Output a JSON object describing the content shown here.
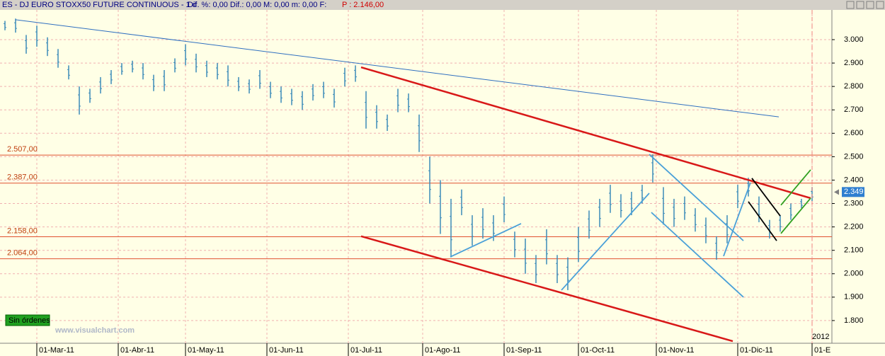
{
  "header": {
    "title": "ES - DJ EURO STOXX50 FUTURE CONTINUOUS - 1 d",
    "stats": "Dif. %: 0,00  Dif.: 0,00  M: 0,00  m: 0,00  F:",
    "price": "P : 2.146,00"
  },
  "chart_data": {
    "type": "hilo",
    "color": "#3a8ab8",
    "x": [
      -9,
      -6,
      -3,
      0,
      3,
      6,
      9,
      12,
      15,
      18,
      21,
      24,
      27,
      30,
      33,
      36,
      39,
      42,
      45,
      48,
      51,
      54,
      57,
      60,
      63,
      66,
      69,
      72,
      75,
      78,
      81,
      84,
      87,
      90,
      93,
      96,
      99,
      102,
      105,
      108,
      111,
      114,
      117,
      120,
      123,
      126,
      129,
      132,
      135,
      138,
      141,
      144,
      147,
      150,
      153,
      156,
      159,
      162,
      165,
      168,
      171,
      174,
      177,
      180,
      183,
      186,
      189,
      192,
      195,
      198,
      201,
      204,
      207,
      210,
      213,
      216,
      219
    ],
    "high": [
      3080,
      3090,
      3020,
      3060,
      3010,
      2960,
      2890,
      2800,
      2790,
      2840,
      2870,
      2900,
      2910,
      2900,
      2850,
      2870,
      2920,
      2980,
      2940,
      2910,
      2900,
      2890,
      2840,
      2830,
      2870,
      2820,
      2800,
      2790,
      2780,
      2810,
      2820,
      2790,
      2880,
      2890,
      2780,
      2720,
      2680,
      2790,
      2770,
      2680,
      2500,
      2400,
      2320,
      2360,
      2250,
      2280,
      2250,
      2330,
      2180,
      2150,
      2080,
      2190,
      2080,
      2070,
      2200,
      2270,
      2320,
      2380,
      2340,
      2350,
      2380,
      2510,
      2370,
      2320,
      2330,
      2280,
      2240,
      2160,
      2250,
      2380,
      2410,
      2330,
      2230,
      2250,
      2300,
      2320,
      2370
    ],
    "low": [
      3040,
      3030,
      2940,
      2970,
      2930,
      2880,
      2830,
      2680,
      2730,
      2770,
      2810,
      2850,
      2860,
      2830,
      2780,
      2780,
      2860,
      2890,
      2860,
      2840,
      2830,
      2800,
      2780,
      2770,
      2790,
      2750,
      2730,
      2720,
      2700,
      2740,
      2750,
      2710,
      2800,
      2820,
      2620,
      2620,
      2610,
      2690,
      2690,
      2520,
      2300,
      2170,
      2070,
      2250,
      2120,
      2150,
      2140,
      2220,
      2070,
      2000,
      1960,
      2040,
      1960,
      1930,
      2050,
      2150,
      2200,
      2260,
      2240,
      2250,
      2300,
      2390,
      2210,
      2200,
      2230,
      2180,
      2130,
      2060,
      2130,
      2280,
      2330,
      2220,
      2150,
      2180,
      2230,
      2280,
      2310
    ],
    "xlim": [
      -10.4,
      224.6
    ],
    "xticks": [
      {
        "value": 0,
        "label": "01-Mar-11"
      },
      {
        "value": 23,
        "label": "01-Abr-11"
      },
      {
        "value": 42,
        "label": "01-May-11"
      },
      {
        "value": 65,
        "label": "01-Jun-11"
      },
      {
        "value": 88,
        "label": "01-Jul-11"
      },
      {
        "value": 109,
        "label": "01-Ago-11"
      },
      {
        "value": 132,
        "label": "01-Sep-11"
      },
      {
        "value": 153,
        "label": "01-Oct-11"
      },
      {
        "value": 175,
        "label": "01-Nov-11"
      },
      {
        "value": 198,
        "label": "01-Dic-11"
      },
      {
        "value": 219,
        "label": "01-E"
      }
    ],
    "ylim": [
      1703,
      3127
    ],
    "yticks": [
      {
        "value": 1800,
        "label": "1.800"
      },
      {
        "value": 1900,
        "label": "1.900"
      },
      {
        "value": 2000,
        "label": "2.000"
      },
      {
        "value": 2100,
        "label": "2.100"
      },
      {
        "value": 2200,
        "label": "2.200"
      },
      {
        "value": 2300,
        "label": "2.300"
      },
      {
        "value": 2400,
        "label": "2.400"
      },
      {
        "value": 2500,
        "label": "2.500"
      },
      {
        "value": 2600,
        "label": "2.600"
      },
      {
        "value": 2700,
        "label": "2.700"
      },
      {
        "value": 2800,
        "label": "2.800"
      },
      {
        "value": 2900,
        "label": "2.900"
      },
      {
        "value": 3000,
        "label": "3.000"
      }
    ],
    "grid": true,
    "levels": [
      {
        "value": 2507,
        "label": "2.507,00"
      },
      {
        "value": 2387,
        "label": "2.387,00"
      },
      {
        "value": 2158,
        "label": "2.158,00"
      },
      {
        "value": 2064,
        "label": "2.064,00"
      }
    ],
    "level_color": "#e05030",
    "trendlines": [
      {
        "color": "#2f6fc0",
        "x": [
          -6,
          209.6
        ],
        "y": [
          3085,
          2670
        ]
      },
      {
        "color": "#d81818",
        "x": [
          91.6,
          218.6
        ],
        "y": [
          2882,
          2323
        ]
      },
      {
        "color": "#d81818",
        "x": [
          91.6,
          196.6
        ],
        "y": [
          2160,
          1712
        ]
      },
      {
        "color": "#4aa0d8",
        "x": [
          116.8,
          136.8
        ],
        "y": [
          2072,
          2214
        ]
      },
      {
        "color": "#4aa0d8",
        "x": [
          148.2,
          173
        ],
        "y": [
          1930,
          2344
        ]
      },
      {
        "color": "#4aa0d8",
        "x": [
          173,
          199.6
        ],
        "y": [
          2510,
          2141
        ]
      },
      {
        "color": "#4aa0d8",
        "x": [
          173.6,
          199.6
        ],
        "y": [
          2262,
          1900
        ]
      },
      {
        "color": "#4aa0d8",
        "x": [
          194,
          201.6
        ],
        "y": [
          2075,
          2389
        ]
      },
      {
        "color": "#000000",
        "x": [
          202,
          210
        ],
        "y": [
          2408,
          2247
        ]
      },
      {
        "color": "#000000",
        "x": [
          201,
          209
        ],
        "y": [
          2308,
          2141
        ]
      },
      {
        "color": "#30a020",
        "x": [
          210.2,
          218.6
        ],
        "y": [
          2293,
          2444
        ]
      },
      {
        "color": "#30a020",
        "x": [
          210.2,
          218.6
        ],
        "y": [
          2172,
          2323
        ]
      }
    ],
    "last_price": {
      "value": 2349,
      "label": "2.349"
    },
    "year_label": "2012",
    "status": "Sin órdenes",
    "watermark": "www.visualchart.com"
  }
}
